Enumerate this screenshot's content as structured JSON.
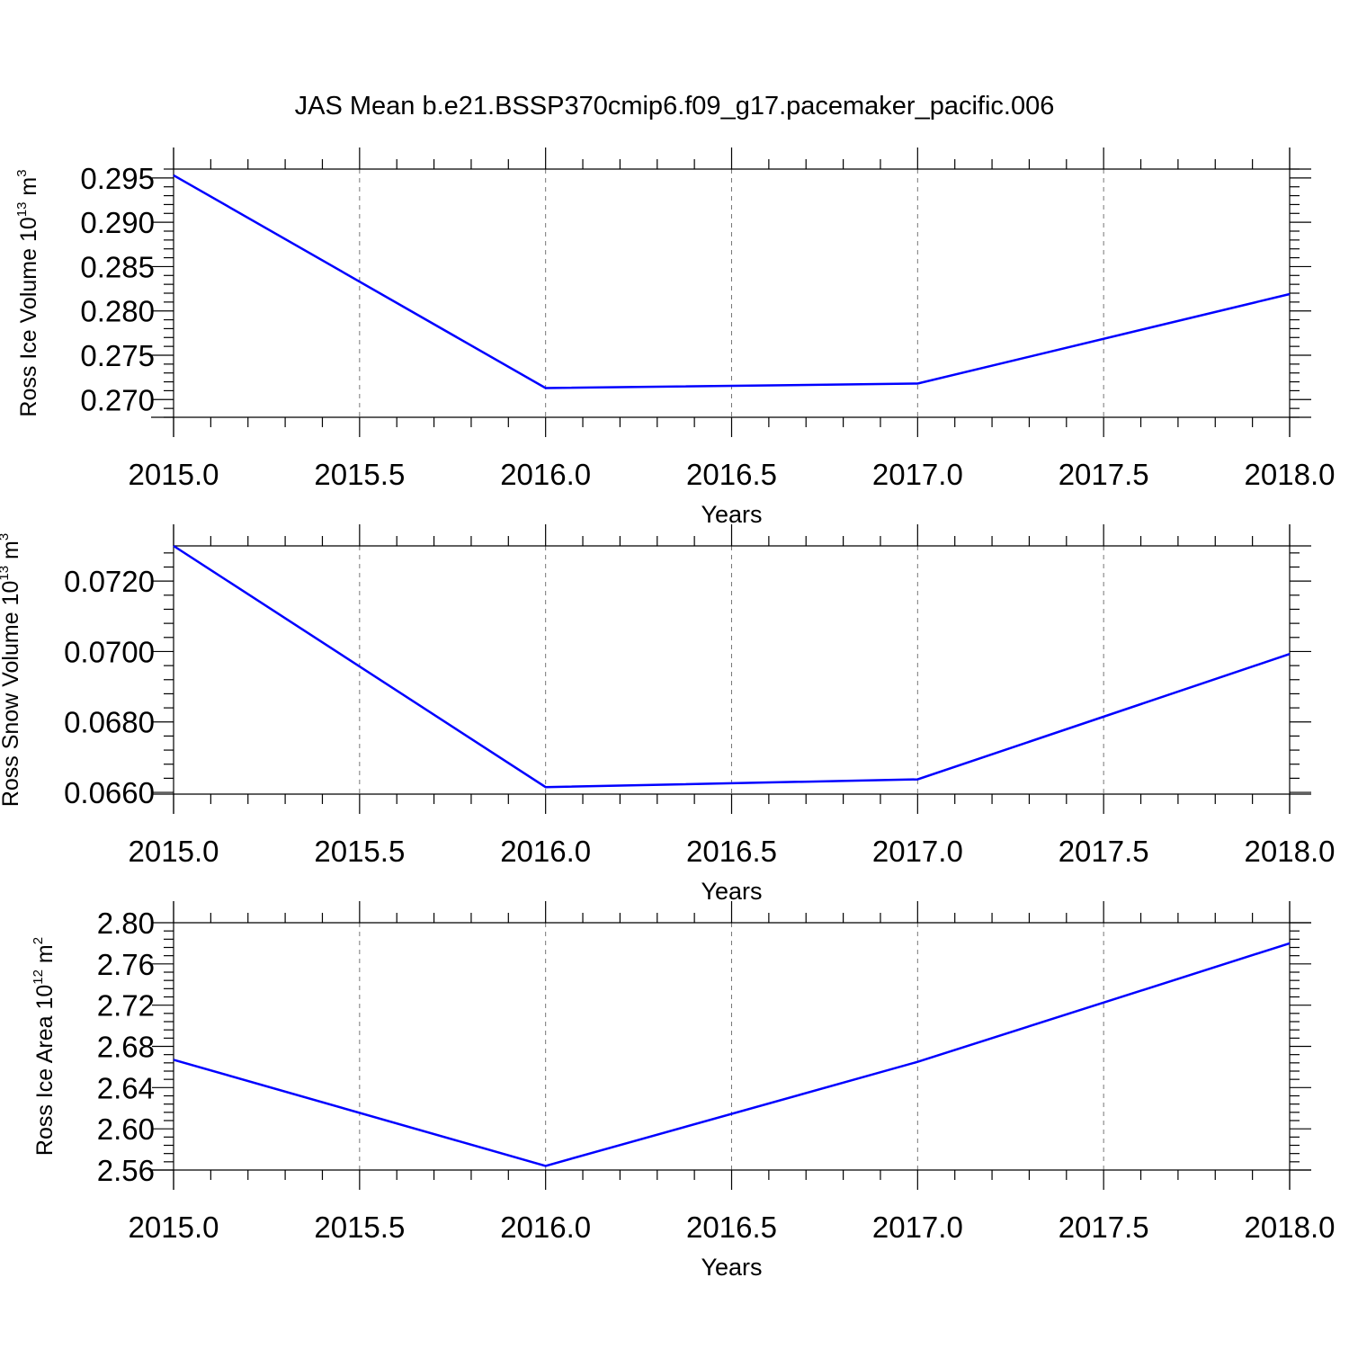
{
  "title": "JAS Mean b.e21.BSSP370cmip6.f09_g17.pacemaker_pacific.006",
  "colors": {
    "line": "#0000ff",
    "grid": "#777777",
    "frame": "#000000"
  },
  "chart_data": [
    {
      "type": "line",
      "xlabel": "Years",
      "ylabel": {
        "text": "Ross Ice Volume 10",
        "sup1": "13",
        "mid": " m",
        "sup2": "3"
      },
      "x": [
        2015.0,
        2016.0,
        2017.0,
        2018.0
      ],
      "series": [
        {
          "values": [
            0.2953,
            0.2713,
            0.2718,
            0.2819
          ]
        }
      ],
      "xlim": [
        2015.0,
        2018.0
      ],
      "ylim": [
        0.268,
        0.296
      ],
      "x_ticks": [
        "2015.0",
        "2015.5",
        "2016.0",
        "2016.5",
        "2017.0",
        "2017.5",
        "2018.0"
      ],
      "y_ticks": [
        "0.295",
        "0.290",
        "0.285",
        "0.280",
        "0.275",
        "0.270"
      ],
      "grid": "vertical dashed"
    },
    {
      "type": "line",
      "xlabel": "Years",
      "ylabel": {
        "text": "Ross Snow Volume 10",
        "sup1": "13",
        "mid": " m",
        "sup2": "3"
      },
      "x": [
        2015.0,
        2016.0,
        2017.0,
        2018.0
      ],
      "series": [
        {
          "values": [
            0.073,
            0.06615,
            0.06637,
            0.06993
          ]
        }
      ],
      "xlim": [
        2015.0,
        2018.0
      ],
      "ylim": [
        0.06595,
        0.073
      ],
      "x_ticks": [
        "2015.0",
        "2015.5",
        "2016.0",
        "2016.5",
        "2017.0",
        "2017.5",
        "2018.0"
      ],
      "y_ticks": [
        "0.0720",
        "0.0700",
        "0.0680",
        "0.0660"
      ],
      "grid": "vertical dashed"
    },
    {
      "type": "line",
      "xlabel": "Years",
      "ylabel": {
        "text": "Ross Ice Area 10",
        "sup1": "12",
        "mid": " m",
        "sup2": "2"
      },
      "x": [
        2015.0,
        2016.0,
        2017.0,
        2018.0
      ],
      "series": [
        {
          "values": [
            2.667,
            2.564,
            2.665,
            2.78
          ]
        }
      ],
      "xlim": [
        2015.0,
        2018.0
      ],
      "ylim": [
        2.56,
        2.8
      ],
      "x_ticks": [
        "2015.0",
        "2015.5",
        "2016.0",
        "2016.5",
        "2017.0",
        "2017.5",
        "2018.0"
      ],
      "y_ticks": [
        "2.80",
        "2.76",
        "2.72",
        "2.68",
        "2.64",
        "2.60",
        "2.56"
      ],
      "grid": "vertical dashed"
    }
  ]
}
